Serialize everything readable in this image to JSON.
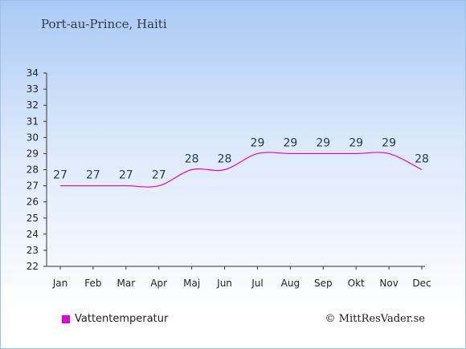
{
  "title": "Port-au-Prince, Haiti",
  "credit": "© MittResVader.se",
  "colors": {
    "line": "#dd00dd",
    "axis": "#333333",
    "label": "#1f3a5a"
  },
  "chart_data": {
    "type": "line",
    "categories": [
      "Jan",
      "Feb",
      "Mar",
      "Apr",
      "Maj",
      "Jun",
      "Jul",
      "Aug",
      "Sep",
      "Okt",
      "Nov",
      "Dec"
    ],
    "series": [
      {
        "name": "Vattentemperatur",
        "values": [
          27,
          27,
          27,
          27,
          28,
          28,
          29,
          29,
          29,
          29,
          29,
          28
        ]
      }
    ],
    "ylim": [
      22,
      34
    ],
    "yticks": [
      22,
      23,
      24,
      25,
      26,
      27,
      28,
      29,
      30,
      31,
      32,
      33,
      34
    ],
    "data_labels": [
      "27",
      "27",
      "27",
      "27",
      "28",
      "28",
      "29",
      "29",
      "29",
      "29",
      "29",
      "28"
    ],
    "grid": false,
    "legend": "bottom-left"
  }
}
